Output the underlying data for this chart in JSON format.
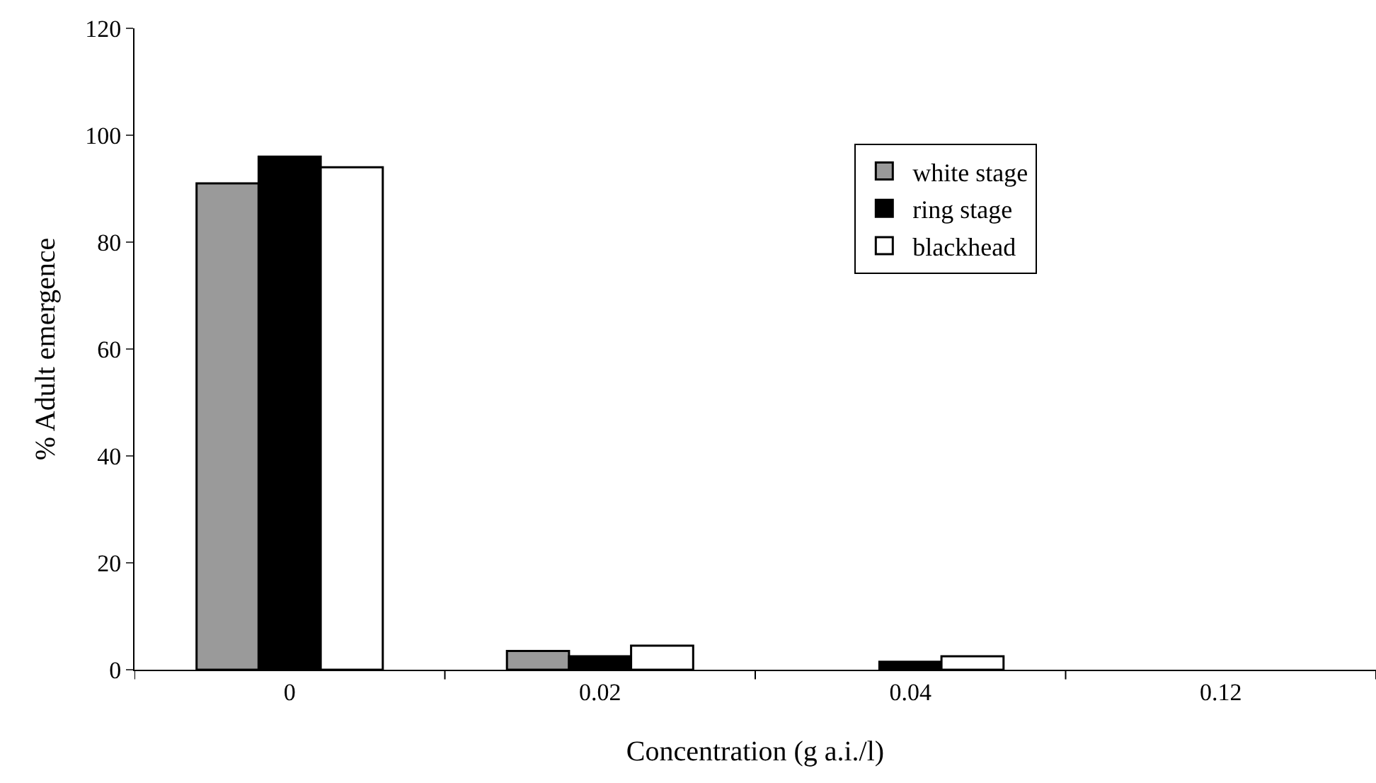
{
  "chart_data": {
    "type": "bar",
    "xlabel": "Concentration (g a.i./l)",
    "ylabel": "% Adult emergence",
    "categories": [
      "0",
      "0.02",
      "0.04",
      "0.12"
    ],
    "series": [
      {
        "name": "white stage",
        "color": "#9a9a9a",
        "values": [
          91,
          3.5,
          0,
          0
        ]
      },
      {
        "name": "ring stage",
        "color": "#000000",
        "values": [
          96,
          2.5,
          1.5,
          0
        ]
      },
      {
        "name": "blackhead",
        "color": "#ffffff",
        "values": [
          94,
          4.5,
          2.5,
          0
        ]
      }
    ],
    "ylim": [
      0,
      120
    ],
    "yticks": [
      0,
      20,
      40,
      60,
      80,
      100,
      120
    ],
    "legend": "top right"
  }
}
